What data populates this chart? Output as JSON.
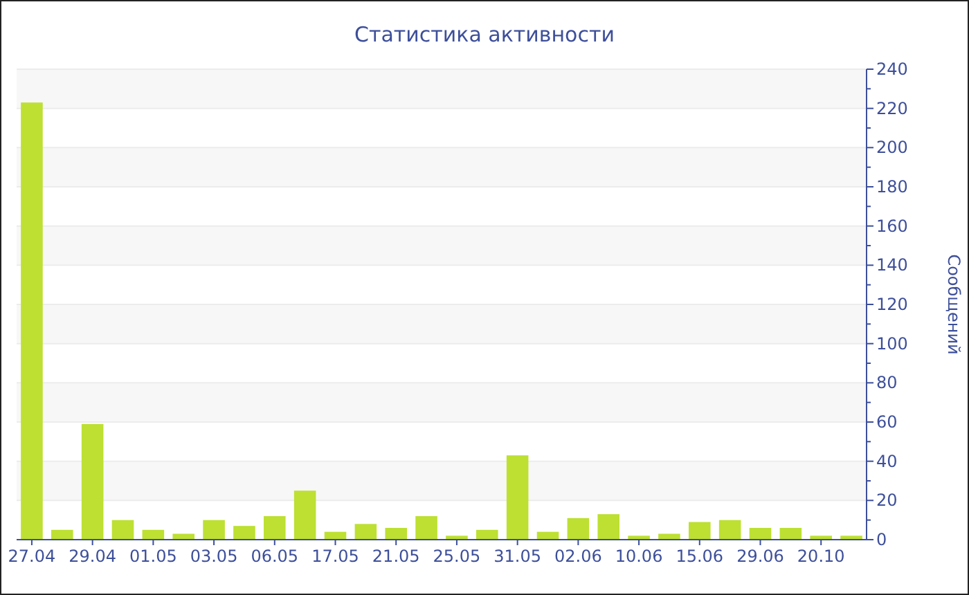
{
  "chart_data": {
    "type": "bar",
    "title": "Статистика активности",
    "ylabel": "Сообщений",
    "categories": [
      "27.04",
      null,
      "29.04",
      null,
      "01.05",
      null,
      "03.05",
      null,
      "06.05",
      null,
      "17.05",
      null,
      "21.05",
      null,
      "25.05",
      null,
      "31.05",
      null,
      "02.06",
      null,
      "10.06",
      null,
      "15.06",
      null,
      "29.06",
      null,
      "20.10",
      null
    ],
    "values": [
      223,
      5,
      59,
      10,
      5,
      3,
      10,
      7,
      12,
      25,
      4,
      8,
      6,
      12,
      2,
      5,
      43,
      4,
      11,
      13,
      2,
      3,
      9,
      10,
      6,
      6,
      2,
      2
    ],
    "color": "#bde032",
    "ylim": [
      0,
      240
    ],
    "yticks": [
      0,
      20,
      40,
      60,
      80,
      100,
      120,
      140,
      160,
      180,
      200,
      220,
      240
    ],
    "grid": "y"
  }
}
